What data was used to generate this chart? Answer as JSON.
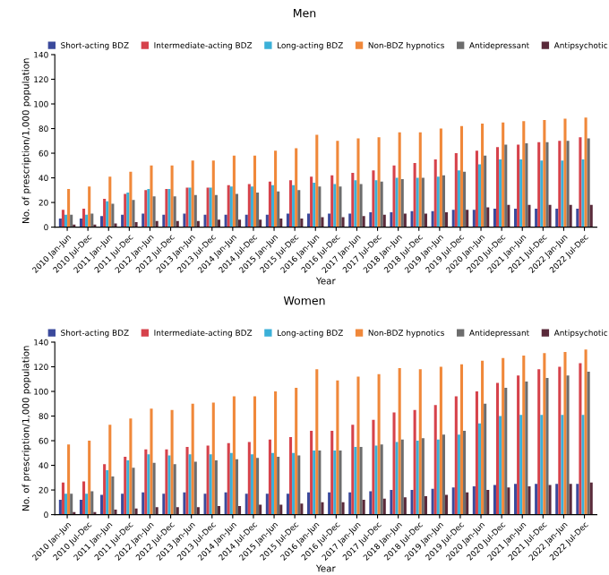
{
  "chart_data": [
    {
      "type": "bar",
      "title": "Men",
      "xlabel": "Year",
      "ylabel": "No. of prescription/1,000 population",
      "legend": "top",
      "grid": false,
      "ylim": [
        0,
        140
      ],
      "yticks": [
        0,
        20,
        40,
        60,
        80,
        100,
        120,
        140
      ],
      "categories": [
        "2010 Jan-Jun",
        "2010 Jul-Dec",
        "2011 Jan-Jun",
        "2011 Jul-Dec",
        "2012 Jan-Jun",
        "2012 Jul-Dec",
        "2013 Jan-Jun",
        "2013 Jul-Dec",
        "2014 Jan-Jun",
        "2014 Jul-Dec",
        "2015 Jan-Jun",
        "2015 Jul-Dec",
        "2016 Jan-Jun",
        "2016 Jul-Dec",
        "2017 Jan-Jun",
        "2017 Jul-Dec",
        "2018 Jan-Jun",
        "2018 Jul-Dec",
        "2019 Jan-Jun",
        "2019 Jul-Dec",
        "2020 Jan-Jun",
        "2020 Jul-Dec",
        "2021 Jan-Jun",
        "2021 Jul-Dec",
        "2022 Jan-Jun",
        "2022 Jul-Dec"
      ],
      "series": [
        {
          "name": "Short-acting BDZ",
          "color": "#3b4a9c",
          "values": [
            7,
            7,
            9,
            10,
            11,
            10,
            11,
            10,
            10,
            10,
            10,
            11,
            11,
            11,
            11,
            12,
            12,
            13,
            13,
            14,
            14,
            15,
            15,
            15,
            15,
            15
          ]
        },
        {
          "name": "Intermediate-acting BDZ",
          "color": "#d6424b",
          "values": [
            14,
            15,
            23,
            27,
            30,
            31,
            32,
            32,
            34,
            35,
            37,
            38,
            41,
            42,
            44,
            46,
            50,
            52,
            55,
            60,
            62,
            65,
            67,
            69,
            70,
            73
          ]
        },
        {
          "name": "Long-acting BDZ",
          "color": "#3bb0d8",
          "values": [
            10,
            10,
            21,
            28,
            31,
            31,
            32,
            32,
            33,
            33,
            34,
            34,
            36,
            35,
            38,
            38,
            40,
            40,
            41,
            46,
            51,
            55,
            55,
            54,
            54,
            55
          ]
        },
        {
          "name": "Non-BDZ hypnotics",
          "color": "#f0883a",
          "values": [
            31,
            33,
            41,
            45,
            50,
            50,
            54,
            54,
            58,
            58,
            62,
            64,
            75,
            70,
            72,
            73,
            77,
            77,
            80,
            82,
            84,
            85,
            86,
            87,
            88,
            89
          ]
        },
        {
          "name": "Antidepressant",
          "color": "#6d6d6d",
          "values": [
            10,
            11,
            19,
            22,
            25,
            25,
            26,
            26,
            27,
            28,
            29,
            30,
            33,
            33,
            35,
            37,
            39,
            40,
            42,
            45,
            58,
            67,
            68,
            69,
            70,
            72
          ]
        },
        {
          "name": "Antipsychotic",
          "color": "#5a2a3a",
          "values": [
            2,
            2,
            3,
            4,
            5,
            5,
            5,
            6,
            6,
            6,
            7,
            7,
            8,
            8,
            9,
            10,
            11,
            11,
            12,
            14,
            16,
            18,
            18,
            18,
            18,
            18
          ]
        }
      ]
    },
    {
      "type": "bar",
      "title": "Women",
      "xlabel": "Year",
      "ylabel": "No. of prescription/1,000 population",
      "legend": "top",
      "grid": false,
      "ylim": [
        0,
        140
      ],
      "yticks": [
        0,
        20,
        40,
        60,
        80,
        100,
        120,
        140
      ],
      "categories": [
        "2010 Jan-Jun",
        "2010 Jul-Dec",
        "2011 Jan-Jun",
        "2011 Jul-Dec",
        "2012 Jan-Jun",
        "2012 Jul-Dec",
        "2013 Jan-Jun",
        "2013 Jul-Dec",
        "2014 Jan-Jun",
        "2014 Jul-Dec",
        "2015 Jan-Jun",
        "2015 Jul-Dec",
        "2016 Jan-Jun",
        "2016 Jul-Dec",
        "2017 Jan-Jun",
        "2017 Jul-Dec",
        "2018 Jan-Jun",
        "2018 Jul-Dec",
        "2019 Jan-Jun",
        "2019 Jul-Dec",
        "2020 Jan-Jun",
        "2020 Jul-Dec",
        "2021 Jan-Jun",
        "2021 Jul-Dec",
        "2022 Jan-Jun",
        "2022 Jul-Dec"
      ],
      "series": [
        {
          "name": "Short-acting BDZ",
          "color": "#3b4a9c",
          "values": [
            12,
            12,
            16,
            17,
            18,
            17,
            18,
            17,
            18,
            17,
            17,
            17,
            18,
            18,
            18,
            19,
            20,
            20,
            21,
            22,
            23,
            24,
            25,
            25,
            25,
            25
          ]
        },
        {
          "name": "Intermediate-acting BDZ",
          "color": "#d6424b",
          "values": [
            26,
            27,
            41,
            47,
            53,
            53,
            55,
            56,
            58,
            59,
            61,
            63,
            68,
            68,
            73,
            77,
            83,
            85,
            89,
            96,
            100,
            107,
            113,
            118,
            120,
            123
          ]
        },
        {
          "name": "Long-acting BDZ",
          "color": "#3bb0d8",
          "values": [
            17,
            17,
            36,
            44,
            49,
            48,
            49,
            49,
            50,
            49,
            50,
            50,
            52,
            52,
            55,
            56,
            59,
            60,
            61,
            65,
            74,
            80,
            81,
            81,
            81,
            81
          ]
        },
        {
          "name": "Non-BDZ hypnotics",
          "color": "#f0883a",
          "values": [
            57,
            60,
            73,
            78,
            86,
            85,
            90,
            91,
            96,
            96,
            100,
            103,
            118,
            109,
            112,
            114,
            119,
            118,
            120,
            122,
            125,
            127,
            129,
            131,
            132,
            134
          ]
        },
        {
          "name": "Antidepressant",
          "color": "#6d6d6d",
          "values": [
            17,
            19,
            31,
            38,
            42,
            41,
            43,
            44,
            45,
            46,
            47,
            48,
            52,
            52,
            55,
            57,
            61,
            62,
            65,
            68,
            90,
            103,
            108,
            111,
            113,
            116
          ]
        },
        {
          "name": "Antipsychotic",
          "color": "#5a2a3a",
          "values": [
            2,
            2,
            4,
            5,
            6,
            6,
            6,
            7,
            7,
            8,
            8,
            9,
            10,
            10,
            12,
            13,
            14,
            15,
            16,
            18,
            20,
            22,
            23,
            24,
            25,
            26
          ]
        }
      ]
    }
  ]
}
